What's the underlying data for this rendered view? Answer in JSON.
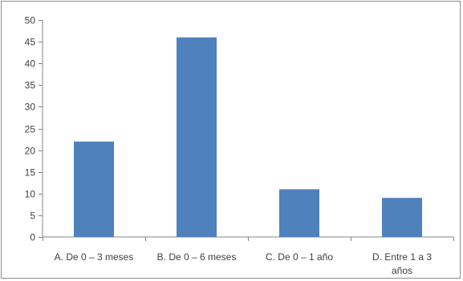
{
  "chart_data": {
    "type": "bar",
    "categories": [
      [
        "A. De 0 – 3 meses"
      ],
      [
        "B. De 0 – 6 meses"
      ],
      [
        "C. De 0 – 1 año"
      ],
      [
        "D. Entre 1 a 3",
        "años"
      ]
    ],
    "values": [
      22,
      46,
      11,
      9
    ],
    "ylim": [
      0,
      50
    ],
    "yticks": [
      0,
      5,
      10,
      15,
      20,
      25,
      30,
      35,
      40,
      45,
      50
    ],
    "grid": false,
    "legend": "none",
    "bar_color": "#4f81bd"
  }
}
